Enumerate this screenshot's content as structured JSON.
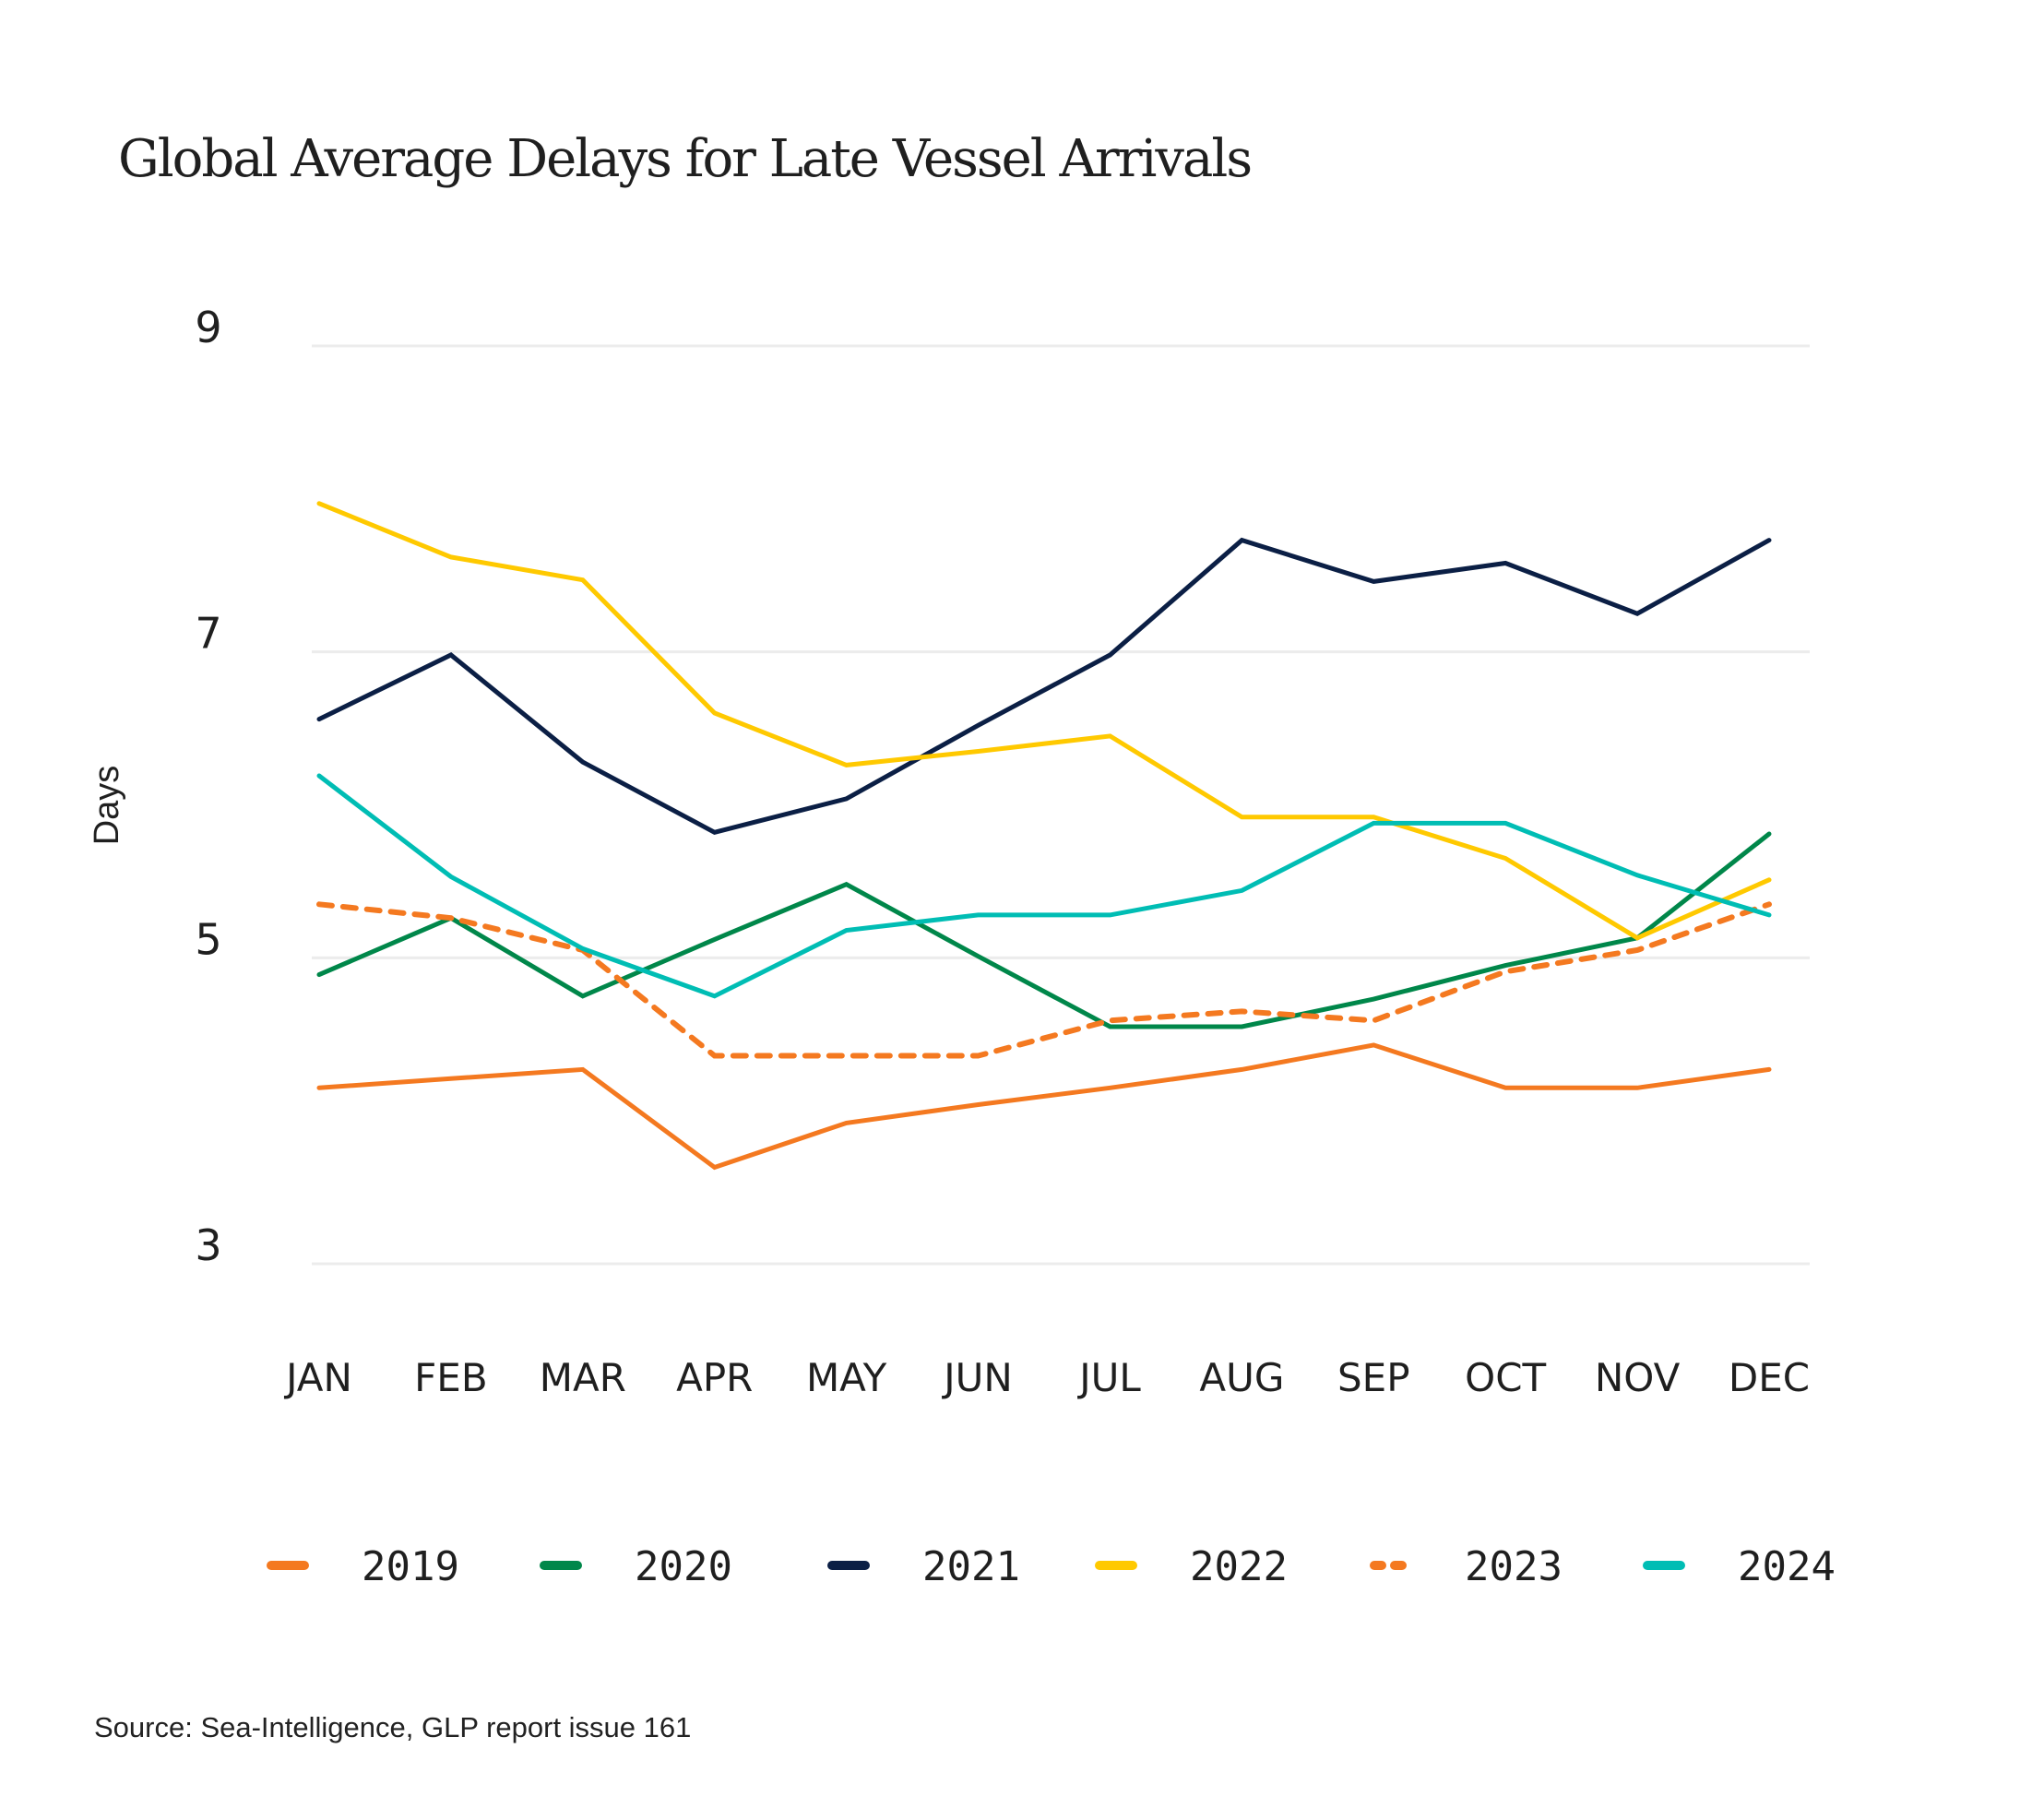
{
  "chart_data": {
    "type": "line",
    "title": "Global Average Delays for Late Vessel Arrivals",
    "xlabel": "",
    "ylabel": "Days",
    "ylim": [
      3,
      9
    ],
    "yticks": [
      3,
      5,
      7,
      9
    ],
    "grid": true,
    "legend_position": "bottom",
    "categories": [
      "JAN",
      "FEB",
      "MAR",
      "APR",
      "MAY",
      "JUN",
      "JUL",
      "AUG",
      "SEP",
      "OCT",
      "NOV",
      "DEC"
    ],
    "series": [
      {
        "name": "2019",
        "color": "#F47920",
        "dashed": false,
        "values": [
          4.15,
          4.21,
          4.27,
          3.63,
          3.92,
          4.04,
          4.15,
          4.27,
          4.43,
          4.15,
          4.15,
          4.27
        ]
      },
      {
        "name": "2020",
        "color": "#00874A",
        "dashed": false,
        "values": [
          4.89,
          5.26,
          4.75,
          5.12,
          5.48,
          5.01,
          4.55,
          4.55,
          4.73,
          4.95,
          5.13,
          5.81
        ]
      },
      {
        "name": "2021",
        "color": "#0B1F45",
        "dashed": false,
        "values": [
          6.56,
          6.98,
          6.28,
          5.82,
          6.04,
          6.52,
          6.98,
          7.73,
          7.46,
          7.58,
          7.25,
          7.73
        ]
      },
      {
        "name": "2022",
        "color": "#FFC900",
        "dashed": false,
        "values": [
          7.97,
          7.62,
          7.47,
          6.6,
          6.26,
          6.35,
          6.45,
          5.92,
          5.92,
          5.65,
          5.13,
          5.51
        ]
      },
      {
        "name": "2023",
        "color": "#F47920",
        "dashed": true,
        "values": [
          5.35,
          5.26,
          5.05,
          4.36,
          4.36,
          4.36,
          4.59,
          4.65,
          4.59,
          4.91,
          5.05,
          5.35
        ]
      },
      {
        "name": "2024",
        "color": "#00BDB4",
        "dashed": false,
        "values": [
          6.19,
          5.53,
          5.06,
          4.75,
          5.18,
          5.28,
          5.28,
          5.44,
          5.88,
          5.88,
          5.54,
          5.28
        ]
      }
    ],
    "source": "Source: Sea-Intelligence, GLP report issue 161"
  }
}
